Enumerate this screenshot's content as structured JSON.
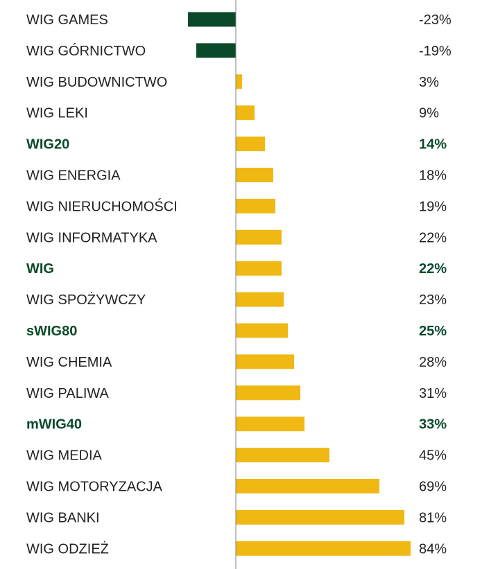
{
  "chart_data": {
    "type": "bar",
    "orientation": "horizontal",
    "title": "",
    "xlabel": "",
    "ylabel": "",
    "xlim": [
      -30,
      100
    ],
    "grid": false,
    "legend": "none",
    "colors": {
      "positive": "#f0b812",
      "negative": "#0a4a2a",
      "highlight_text": "#0a4a2a",
      "text": "#222222",
      "axis": "#808080"
    },
    "categories": [
      "WIG GAMES",
      "WIG GÓRNICTWO",
      "WIG BUDOWNICTWO",
      "WIG LEKI",
      "WIG20",
      "WIG ENERGIA",
      "WIG NIERUCHOMOŚCI",
      "WIG INFORMATYKA",
      "WIG",
      "WIG SPOŻYWCZY",
      "sWIG80",
      "WIG CHEMIA",
      "WIG PALIWA",
      "mWIG40",
      "WIG MEDIA",
      "WIG MOTORYZACJA",
      "WIG BANKI",
      "WIG ODZIEŻ"
    ],
    "values": [
      -23,
      -19,
      3,
      9,
      14,
      18,
      19,
      22,
      22,
      23,
      25,
      28,
      31,
      33,
      45,
      69,
      81,
      84
    ],
    "value_labels": [
      "-23%",
      "-19%",
      "3%",
      "9%",
      "14%",
      "18%",
      "19%",
      "22%",
      "22%",
      "23%",
      "25%",
      "28%",
      "31%",
      "33%",
      "45%",
      "69%",
      "81%",
      "84%"
    ],
    "highlighted": [
      "WIG20",
      "WIG",
      "sWIG80",
      "mWIG40"
    ]
  }
}
